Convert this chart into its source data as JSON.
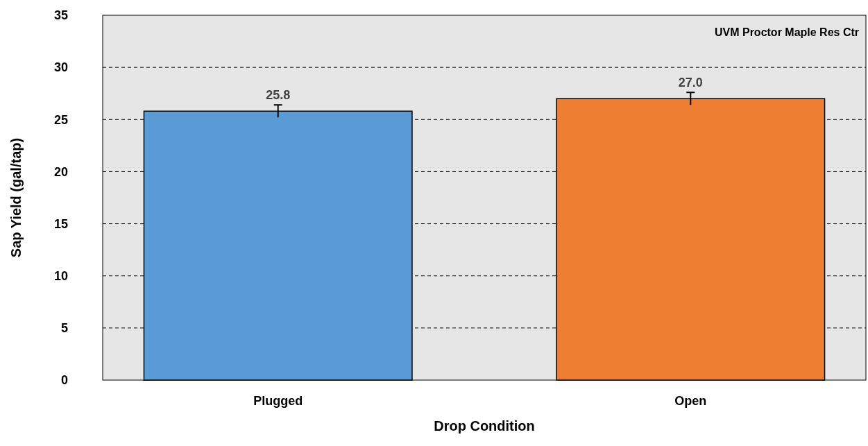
{
  "chart_data": {
    "type": "bar",
    "xlabel": "Drop Condition",
    "ylabel": "Sap Yield (gal/tap)",
    "categories": [
      "Plugged",
      "Open"
    ],
    "colors": [
      "#5b9bd5",
      "#ed7d31"
    ],
    "values": [
      25.8,
      27.0
    ],
    "errors": [
      0.6,
      0.6
    ],
    "value_labels": [
      "25.8",
      "27.0"
    ],
    "ylim": [
      0,
      35
    ],
    "yticks": [
      0,
      5,
      10,
      15,
      20,
      25,
      30,
      35
    ],
    "grid": "y",
    "annotations": [
      "UVM Proctor Maple Res Ctr"
    ]
  }
}
